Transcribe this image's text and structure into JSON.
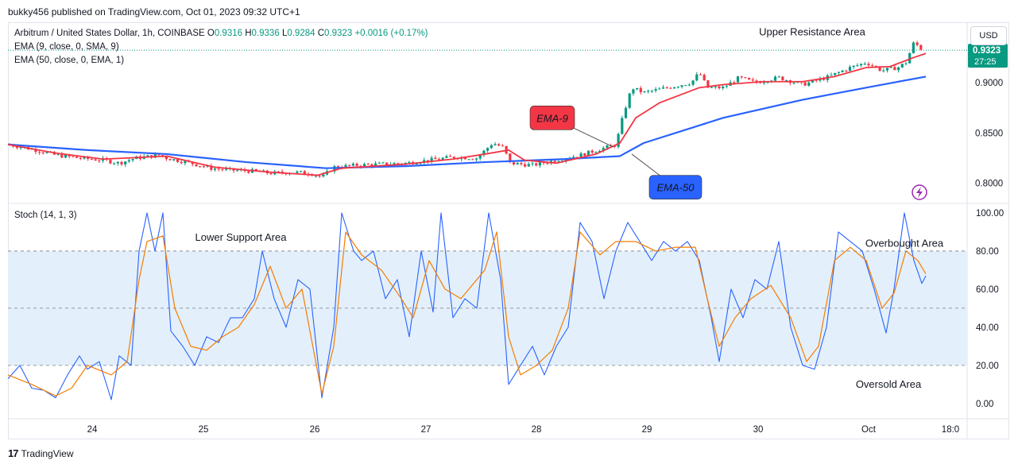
{
  "header": {
    "publish_line": "bukky456 published on TradingView.com, Oct 01, 2023 09:32 UTC+1",
    "symbol": "Arbitrum / United States Dollar, 1h, COINBASE",
    "o_label": "O",
    "o_value": "0.9316",
    "h_label": "H",
    "h_value": "0.9336",
    "l_label": "L",
    "l_value": "0.9284",
    "c_label": "C",
    "c_value": "0.9323",
    "change": "+0.0016 (+0.17%)",
    "ema9_legend": "EMA (9, close, 0, SMA, 9)",
    "ema50_legend": "EMA (50, close, 0, EMA, 1)",
    "currency_button": "USD"
  },
  "footer": {
    "brand": "TradingView",
    "logo": "17"
  },
  "colors": {
    "up": "#089981",
    "down": "#f23645",
    "ema9": "#f23645",
    "ema50": "#2962ff",
    "stoch_k": "#2962ff",
    "stoch_d": "#f57c00",
    "band_fill": "#e3f0fb",
    "price_tag": "#089981"
  },
  "chart_data": [
    {
      "type": "candlestick",
      "title": "",
      "x_tick_labels": [
        "24",
        "25",
        "26",
        "27",
        "28",
        "29",
        "30",
        "Oct",
        "18:0"
      ],
      "y_tick_labels": [
        "0.9000",
        "0.8500",
        "0.8000"
      ],
      "ylim": [
        0.78,
        0.96
      ],
      "last_price": "0.9323",
      "countdown": "27:25",
      "close_path": [
        [
          0,
          0.8385
        ],
        [
          30,
          0.834
        ],
        [
          60,
          0.828
        ],
        [
          90,
          0.825
        ],
        [
          120,
          0.823
        ],
        [
          140,
          0.82
        ],
        [
          160,
          0.825
        ],
        [
          190,
          0.828
        ],
        [
          200,
          0.825
        ],
        [
          230,
          0.82
        ],
        [
          255,
          0.815
        ],
        [
          280,
          0.813
        ],
        [
          310,
          0.812
        ],
        [
          330,
          0.81
        ],
        [
          360,
          0.811
        ],
        [
          380,
          0.81
        ],
        [
          395,
          0.806
        ],
        [
          410,
          0.816
        ],
        [
          440,
          0.818
        ],
        [
          470,
          0.819
        ],
        [
          500,
          0.82
        ],
        [
          530,
          0.823
        ],
        [
          560,
          0.826
        ],
        [
          590,
          0.825
        ],
        [
          610,
          0.84
        ],
        [
          625,
          0.835
        ],
        [
          630,
          0.82
        ],
        [
          660,
          0.818
        ],
        [
          690,
          0.823
        ],
        [
          720,
          0.828
        ],
        [
          750,
          0.835
        ],
        [
          765,
          0.838
        ],
        [
          775,
          0.87
        ],
        [
          785,
          0.895
        ],
        [
          800,
          0.89
        ],
        [
          830,
          0.895
        ],
        [
          860,
          0.9
        ],
        [
          870,
          0.91
        ],
        [
          880,
          0.895
        ],
        [
          900,
          0.895
        ],
        [
          920,
          0.905
        ],
        [
          940,
          0.9
        ],
        [
          970,
          0.905
        ],
        [
          1000,
          0.898
        ],
        [
          1030,
          0.905
        ],
        [
          1060,
          0.915
        ],
        [
          1080,
          0.92
        ],
        [
          1100,
          0.912
        ],
        [
          1120,
          0.915
        ],
        [
          1130,
          0.92
        ],
        [
          1140,
          0.94
        ],
        [
          1150,
          0.933
        ],
        [
          1155,
          0.9323
        ]
      ],
      "ema9": [
        [
          0,
          0.8385
        ],
        [
          60,
          0.83
        ],
        [
          120,
          0.824
        ],
        [
          200,
          0.827
        ],
        [
          260,
          0.816
        ],
        [
          330,
          0.811
        ],
        [
          390,
          0.808
        ],
        [
          420,
          0.815
        ],
        [
          500,
          0.819
        ],
        [
          560,
          0.824
        ],
        [
          600,
          0.829
        ],
        [
          630,
          0.833
        ],
        [
          650,
          0.823
        ],
        [
          690,
          0.82
        ],
        [
          740,
          0.829
        ],
        [
          770,
          0.84
        ],
        [
          790,
          0.865
        ],
        [
          820,
          0.88
        ],
        [
          870,
          0.895
        ],
        [
          900,
          0.898
        ],
        [
          950,
          0.901
        ],
        [
          1000,
          0.901
        ],
        [
          1040,
          0.906
        ],
        [
          1080,
          0.915
        ],
        [
          1110,
          0.916
        ],
        [
          1140,
          0.925
        ],
        [
          1155,
          0.929
        ]
      ],
      "ema50": [
        [
          0,
          0.8385
        ],
        [
          100,
          0.833
        ],
        [
          200,
          0.829
        ],
        [
          300,
          0.821
        ],
        [
          400,
          0.815
        ],
        [
          500,
          0.817
        ],
        [
          600,
          0.821
        ],
        [
          700,
          0.824
        ],
        [
          770,
          0.827
        ],
        [
          800,
          0.84
        ],
        [
          900,
          0.865
        ],
        [
          1000,
          0.883
        ],
        [
          1080,
          0.895
        ],
        [
          1155,
          0.906
        ]
      ],
      "annotations": [
        {
          "text": "Upper Resistance Area",
          "x": 1012,
          "y": 0.95
        },
        {
          "text": "EMA-9",
          "x": 685,
          "y": 0.865,
          "target_x": 762,
          "target_y": 0.836,
          "series": "ema9"
        },
        {
          "text": "EMA-50",
          "x": 840,
          "y": 0.796,
          "target_x": 785,
          "target_y": 0.829,
          "series": "ema50"
        }
      ]
    },
    {
      "type": "line",
      "title": "Stoch (14, 1, 3)",
      "y_tick_labels": [
        "100.00",
        "80.00",
        "60.00",
        "40.00",
        "20.00",
        "0.00"
      ],
      "ylim": [
        -8,
        105
      ],
      "bands": {
        "upper": 80,
        "middle": 50,
        "lower": 20
      },
      "series": [
        {
          "name": "%K",
          "points": [
            [
              0,
              13
            ],
            [
              15,
              20
            ],
            [
              30,
              8
            ],
            [
              45,
              7
            ],
            [
              60,
              3
            ],
            [
              75,
              15
            ],
            [
              90,
              25
            ],
            [
              100,
              18
            ],
            [
              115,
              22
            ],
            [
              130,
              2
            ],
            [
              140,
              25
            ],
            [
              155,
              20
            ],
            [
              165,
              80
            ],
            [
              175,
              100
            ],
            [
              185,
              80
            ],
            [
              195,
              100
            ],
            [
              205,
              38
            ],
            [
              220,
              30
            ],
            [
              235,
              20
            ],
            [
              250,
              35
            ],
            [
              265,
              32
            ],
            [
              280,
              45
            ],
            [
              295,
              45
            ],
            [
              310,
              55
            ],
            [
              320,
              80
            ],
            [
              335,
              55
            ],
            [
              350,
              40
            ],
            [
              365,
              65
            ],
            [
              380,
              60
            ],
            [
              395,
              3
            ],
            [
              410,
              40
            ],
            [
              420,
              100
            ],
            [
              435,
              80
            ],
            [
              445,
              75
            ],
            [
              460,
              80
            ],
            [
              475,
              55
            ],
            [
              490,
              65
            ],
            [
              505,
              35
            ],
            [
              520,
              80
            ],
            [
              535,
              48
            ],
            [
              545,
              100
            ],
            [
              560,
              45
            ],
            [
              575,
              55
            ],
            [
              590,
              50
            ],
            [
              605,
              100
            ],
            [
              620,
              65
            ],
            [
              630,
              10
            ],
            [
              645,
              20
            ],
            [
              660,
              30
            ],
            [
              675,
              15
            ],
            [
              690,
              30
            ],
            [
              705,
              40
            ],
            [
              720,
              95
            ],
            [
              735,
              85
            ],
            [
              750,
              55
            ],
            [
              765,
              80
            ],
            [
              780,
              95
            ],
            [
              795,
              85
            ],
            [
              810,
              75
            ],
            [
              825,
              85
            ],
            [
              840,
              80
            ],
            [
              855,
              85
            ],
            [
              870,
              75
            ],
            [
              885,
              45
            ],
            [
              895,
              22
            ],
            [
              910,
              60
            ],
            [
              925,
              45
            ],
            [
              940,
              65
            ],
            [
              955,
              60
            ],
            [
              970,
              85
            ],
            [
              985,
              40
            ],
            [
              1000,
              20
            ],
            [
              1015,
              18
            ],
            [
              1030,
              40
            ],
            [
              1045,
              90
            ],
            [
              1060,
              85
            ],
            [
              1075,
              80
            ],
            [
              1090,
              60
            ],
            [
              1105,
              37
            ],
            [
              1115,
              60
            ],
            [
              1128,
              100
            ],
            [
              1140,
              75
            ],
            [
              1150,
              63
            ],
            [
              1155,
              67
            ]
          ]
        },
        {
          "name": "%D",
          "points": [
            [
              0,
              15
            ],
            [
              30,
              10
            ],
            [
              60,
              4
            ],
            [
              80,
              8
            ],
            [
              100,
              20
            ],
            [
              130,
              15
            ],
            [
              150,
              22
            ],
            [
              165,
              65
            ],
            [
              175,
              85
            ],
            [
              195,
              88
            ],
            [
              210,
              50
            ],
            [
              230,
              30
            ],
            [
              250,
              28
            ],
            [
              270,
              35
            ],
            [
              290,
              40
            ],
            [
              310,
              52
            ],
            [
              330,
              72
            ],
            [
              350,
              50
            ],
            [
              370,
              60
            ],
            [
              395,
              5
            ],
            [
              410,
              30
            ],
            [
              425,
              90
            ],
            [
              445,
              78
            ],
            [
              470,
              70
            ],
            [
              495,
              55
            ],
            [
              510,
              45
            ],
            [
              530,
              75
            ],
            [
              550,
              60
            ],
            [
              570,
              55
            ],
            [
              600,
              70
            ],
            [
              615,
              90
            ],
            [
              630,
              35
            ],
            [
              645,
              15
            ],
            [
              665,
              20
            ],
            [
              685,
              28
            ],
            [
              705,
              50
            ],
            [
              720,
              90
            ],
            [
              745,
              78
            ],
            [
              765,
              85
            ],
            [
              790,
              85
            ],
            [
              815,
              80
            ],
            [
              840,
              82
            ],
            [
              865,
              82
            ],
            [
              880,
              55
            ],
            [
              895,
              30
            ],
            [
              915,
              45
            ],
            [
              935,
              55
            ],
            [
              960,
              62
            ],
            [
              985,
              45
            ],
            [
              1005,
              22
            ],
            [
              1020,
              30
            ],
            [
              1040,
              75
            ],
            [
              1060,
              82
            ],
            [
              1080,
              75
            ],
            [
              1100,
              50
            ],
            [
              1115,
              58
            ],
            [
              1130,
              80
            ],
            [
              1145,
              75
            ],
            [
              1155,
              68
            ]
          ]
        }
      ],
      "annotations": [
        {
          "text": "Lower Support Area",
          "x": 293,
          "y": 87
        },
        {
          "text": "Overbought Area",
          "x": 1128,
          "y": 84
        },
        {
          "text": "Oversold Area",
          "x": 1108,
          "y": 10
        }
      ]
    }
  ]
}
